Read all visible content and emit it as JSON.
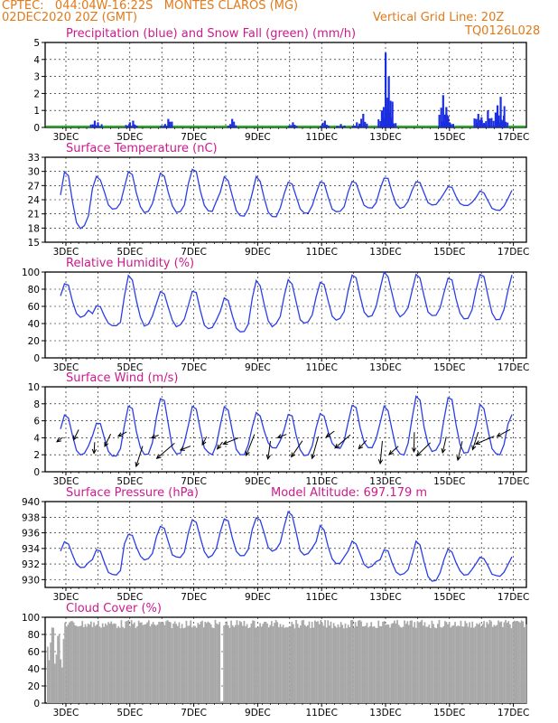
{
  "header": {
    "line1_left": "CPTEC:   044:04W-16:22S   MONTES CLAROS (MG)",
    "line2_left": "02DEC2020 20Z (GMT)",
    "line2_right": "Vertical Grid Line: 20Z",
    "line3_right": "TQ0126L028"
  },
  "colors": {
    "header": "#e07a1a",
    "panel_title": "#cc1a8c",
    "precip": "#1a2ee0",
    "snow": "#20b020",
    "line": "#2a3ee8",
    "cloud": "#a8a8a8",
    "arrow": "#000000"
  },
  "x_axis": {
    "start": "02DEC2020 20Z",
    "end": "17DEC2020",
    "tick_labels": [
      "3DEC",
      "5DEC",
      "7DEC",
      "9DEC",
      "11DEC",
      "13DEC",
      "15DEC",
      "17DEC"
    ]
  },
  "chart_data": [
    {
      "type": "bar",
      "title": "Precipitation (blue) and Snow Fall (green) (mm/h)",
      "ylim": [
        0,
        5
      ],
      "yticks": [
        "0",
        "1",
        "2",
        "3",
        "4",
        "5"
      ],
      "grid": true,
      "series": [
        {
          "name": "Precipitation",
          "x_day": [
            3.9,
            4.0,
            5.0,
            5.1,
            6.1,
            6.2,
            8.2,
            10.1,
            11.1,
            11.6,
            12.1,
            12.3,
            12.9,
            13.0,
            13.1,
            13.2,
            14.8,
            14.9,
            15.0,
            15.9,
            16.0,
            16.2,
            16.5,
            16.6,
            16.7
          ],
          "values": [
            0.4,
            0.3,
            0.3,
            0.4,
            0.2,
            0.5,
            0.5,
            0.3,
            0.4,
            0.2,
            0.3,
            0.8,
            1.0,
            4.4,
            3.0,
            0.6,
            1.9,
            1.2,
            0.3,
            0.8,
            0.6,
            1.0,
            1.3,
            1.8,
            0.7
          ]
        },
        {
          "name": "Snow Fall",
          "values": [
            0
          ]
        }
      ]
    },
    {
      "type": "line",
      "title": "Surface Temperature (nC)",
      "ylim": [
        15,
        33
      ],
      "yticks": [
        "15",
        "18",
        "21",
        "24",
        "27",
        "30",
        "33"
      ],
      "grid": true,
      "daily_max": [
        30,
        29,
        30,
        30,
        31,
        29,
        29,
        28,
        28,
        28,
        29,
        28,
        27,
        26,
        26
      ],
      "daily_min": [
        16,
        21,
        20,
        20,
        20,
        19,
        19,
        20,
        20,
        21,
        21,
        22,
        22,
        21,
        23
      ]
    },
    {
      "type": "line",
      "title": "Relative Humidity (%)",
      "ylim": [
        0,
        100
      ],
      "yticks": [
        "0",
        "20",
        "40",
        "60",
        "80",
        "100"
      ],
      "grid": true,
      "daily_max": [
        88,
        62,
        97,
        80,
        80,
        70,
        90,
        92,
        90,
        98,
        100,
        100,
        96,
        100,
        100
      ],
      "daily_min": [
        40,
        33,
        28,
        30,
        25,
        24,
        28,
        30,
        36,
        40,
        40,
        38,
        37,
        36,
        42
      ]
    },
    {
      "type": "line",
      "title": "Surface Wind (m/s)",
      "ylim": [
        0,
        10
      ],
      "yticks": [
        "0",
        "2",
        "4",
        "6",
        "8",
        "10"
      ],
      "grid": true,
      "daily_max": [
        7,
        6,
        8,
        9,
        8,
        8,
        7,
        7,
        7,
        8,
        8,
        9,
        9,
        8,
        7
      ],
      "daily_min": [
        1,
        1,
        1,
        1,
        1,
        1,
        2,
        1,
        2,
        2,
        1,
        1,
        1,
        1,
        2
      ]
    },
    {
      "type": "line",
      "title": "Surface Pressure (hPa)",
      "annotation": "Model Altitude: 697.179  m",
      "ylim": [
        929,
        940
      ],
      "yticks": [
        "930",
        "932",
        "934",
        "936",
        "938",
        "940"
      ],
      "grid": true,
      "daily_max": [
        935,
        934,
        936,
        937,
        938,
        938,
        938,
        939,
        937,
        935,
        934,
        935,
        934,
        933,
        933
      ],
      "daily_min": [
        931,
        930,
        932,
        932,
        932,
        932,
        933,
        932,
        931,
        931,
        930,
        929,
        930,
        930,
        930
      ]
    },
    {
      "type": "area",
      "title": "Cloud Cover (%)",
      "ylim": [
        0,
        100
      ],
      "yticks": [
        "0",
        "20",
        "40",
        "60",
        "80",
        "100"
      ],
      "grid": true,
      "typical_value": 97
    }
  ]
}
